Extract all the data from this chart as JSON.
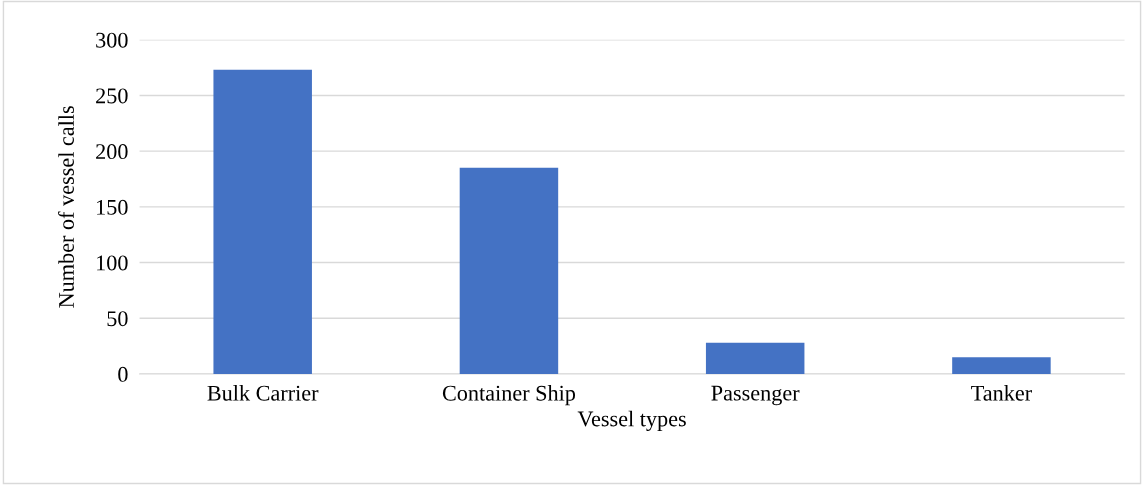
{
  "chart_data": {
    "type": "bar",
    "xlabel": "Vessel types",
    "ylabel": "Number of vessel calls",
    "categories": [
      "Bulk Carrier",
      "Container Ship",
      "Passenger",
      "Tanker"
    ],
    "values": [
      273,
      185,
      28,
      15
    ],
    "color": "#4472c4",
    "ylim": [
      0,
      300
    ],
    "yticks": [
      0,
      50,
      100,
      150,
      200,
      250,
      300
    ],
    "grid": "y",
    "legend": false
  }
}
